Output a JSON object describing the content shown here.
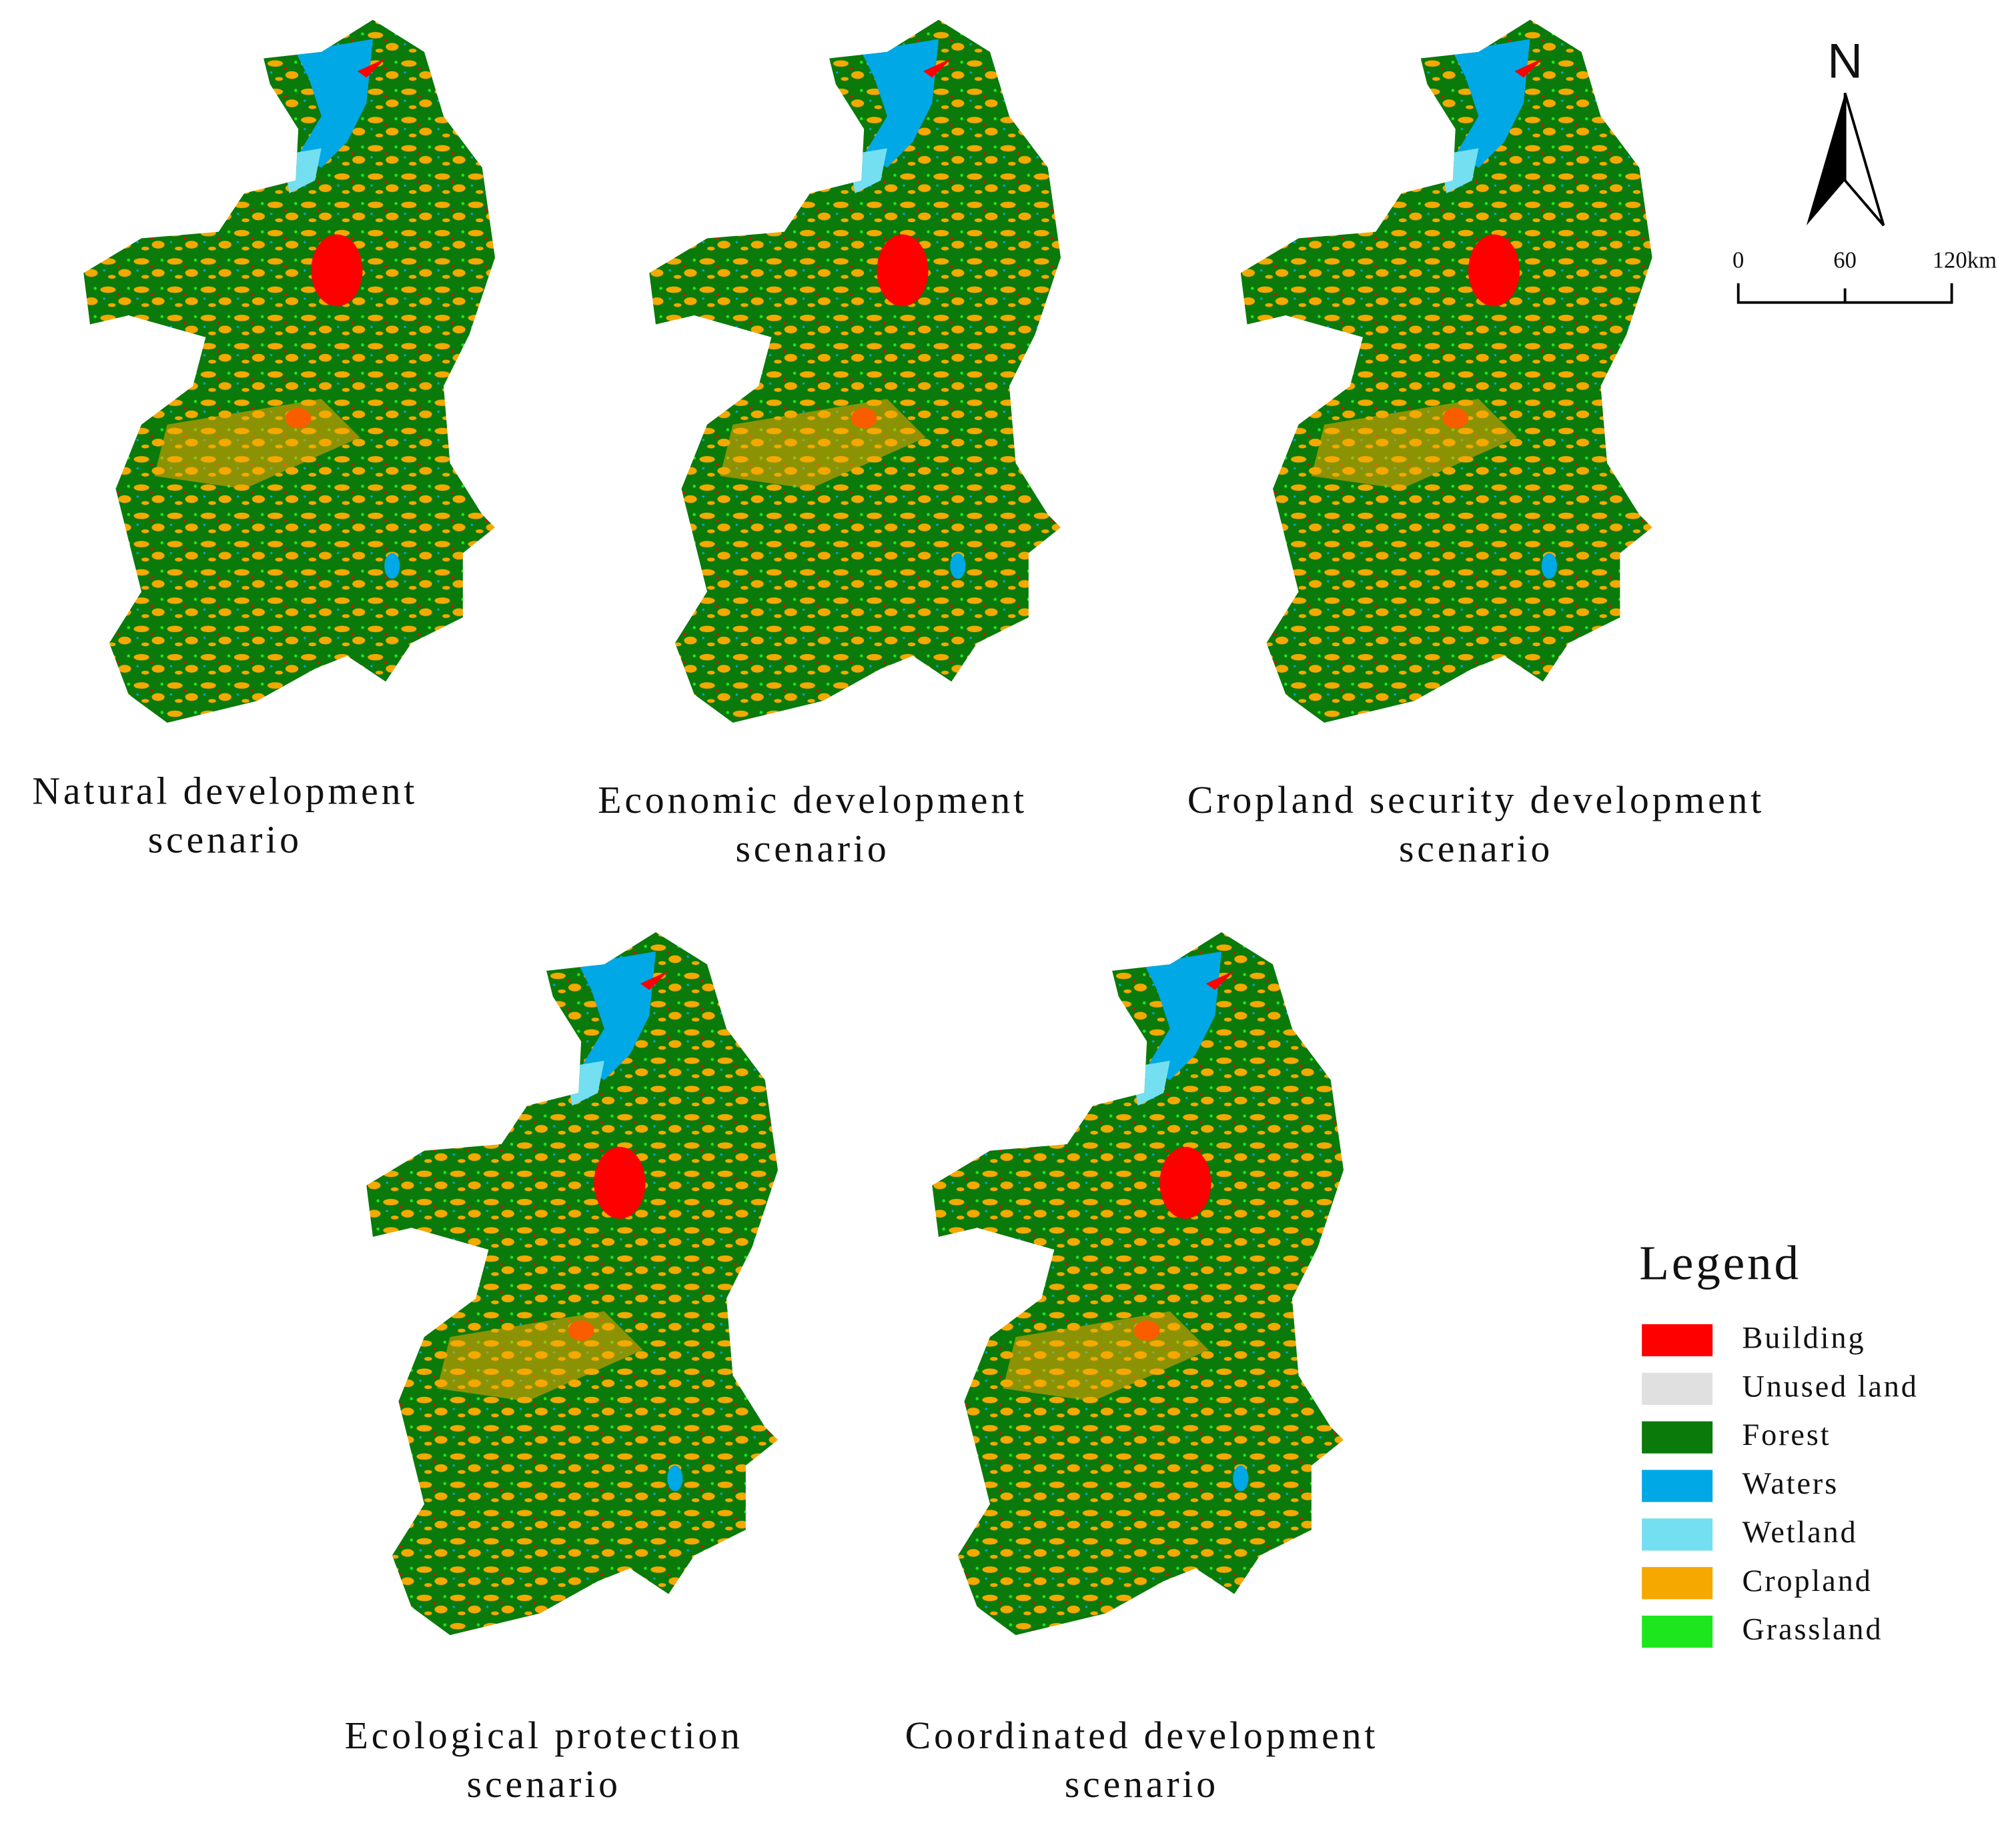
{
  "panels": [
    {
      "lines": [
        "Natural development",
        "scenario"
      ]
    },
    {
      "lines": [
        "Economic development",
        "scenario"
      ]
    },
    {
      "lines": [
        "Cropland security development",
        "scenario"
      ]
    },
    {
      "lines": [
        "Ecological protection",
        "scenario"
      ]
    },
    {
      "lines": [
        "Coordinated development",
        "scenario"
      ]
    }
  ],
  "north": "N",
  "scale": {
    "labels": [
      "0",
      "60",
      "120km"
    ]
  },
  "legend": {
    "title": "Legend",
    "items": [
      {
        "label": "Building",
        "color": "#ff0000"
      },
      {
        "label": "Unused land",
        "color": "#e0e0e0"
      },
      {
        "label": "Forest",
        "color": "#0a7a0a"
      },
      {
        "label": "Waters",
        "color": "#00a8e6"
      },
      {
        "label": "Wetland",
        "color": "#73dff0"
      },
      {
        "label": "Cropland",
        "color": "#f5a800"
      },
      {
        "label": "Grassland",
        "color": "#1ee61e"
      }
    ]
  }
}
